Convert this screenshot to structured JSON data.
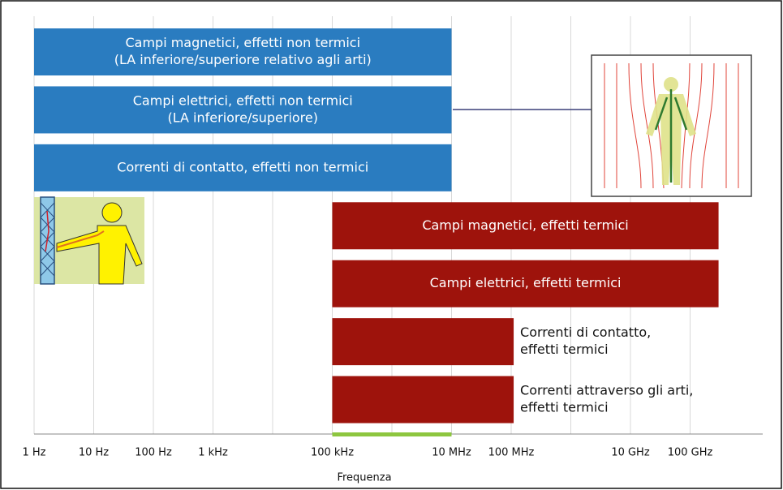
{
  "chart_data": {
    "type": "range-bar",
    "x_label": "Frequenza",
    "x_log": true,
    "xlim": [
      1,
      1000000000000
    ],
    "xticks": [
      {
        "value": 1,
        "label": "1 Hz"
      },
      {
        "value": 10,
        "label": "10 Hz"
      },
      {
        "value": 100,
        "label": "100 Hz"
      },
      {
        "value": 1000,
        "label": "1 kHz"
      },
      {
        "value": 100000,
        "label": "100 kHz"
      },
      {
        "value": 10000000,
        "label": "10 MHz"
      },
      {
        "value": 100000000,
        "label": "100 MHz"
      },
      {
        "value": 10000000000,
        "label": "10 GHz"
      },
      {
        "value": 100000000000,
        "label": "100 GHz"
      }
    ],
    "x_minor_grid": [
      10000,
      1000000,
      1000000000
    ],
    "grid": true,
    "highlight": {
      "range": [
        100000,
        10000000
      ],
      "color": "#8dc63f"
    },
    "bars": [
      {
        "label": [
          "Campi magnetici, effetti non termici",
          "(LA inferiore/superiore relativo agli arti)"
        ],
        "range": [
          1,
          10000000
        ],
        "color": "#2a7cc0",
        "label_inside": true
      },
      {
        "label": [
          "Campi elettrici, effetti non termici",
          "(LA inferiore/superiore)"
        ],
        "range": [
          1,
          10000000
        ],
        "color": "#2a7cc0",
        "label_inside": true
      },
      {
        "label": [
          "Correnti di contatto, effetti non termici"
        ],
        "range": [
          1,
          10000000
        ],
        "color": "#2a7cc0",
        "label_inside": true
      },
      {
        "label": [
          "Campi magnetici, effetti termici"
        ],
        "range": [
          100000,
          300000000000
        ],
        "color": "#9e130c",
        "label_inside": true
      },
      {
        "label": [
          "Campi elettrici, effetti termici"
        ],
        "range": [
          100000,
          300000000000
        ],
        "color": "#9e130c",
        "label_inside": true
      },
      {
        "label": [
          "Correnti di contatto,",
          "effetti termici"
        ],
        "range": [
          100000,
          110000000
        ],
        "color": "#9e130c",
        "label_inside": false
      },
      {
        "label": [
          "Correnti attraverso gli arti,",
          "effetti termici"
        ],
        "range": [
          100000,
          110000000
        ],
        "color": "#9e130c",
        "label_inside": false
      }
    ]
  }
}
